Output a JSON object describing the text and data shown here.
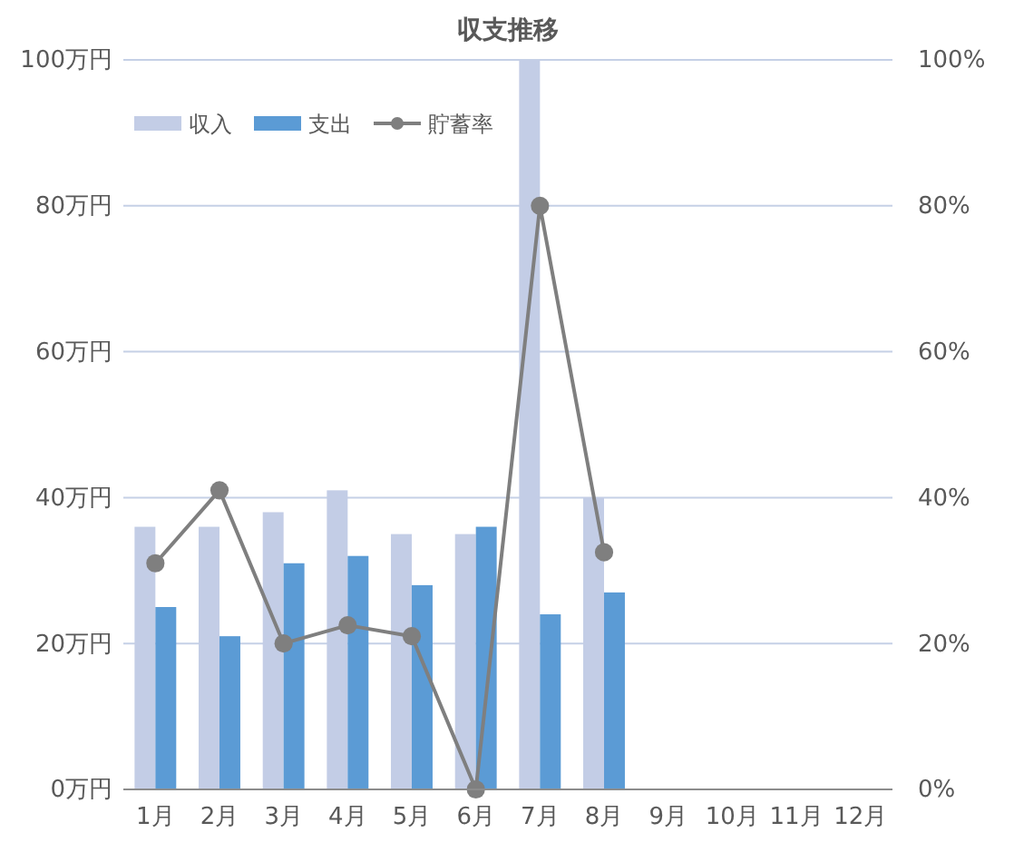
{
  "chart_data": {
    "type": "bar",
    "title": "収支推移",
    "categories": [
      "1月",
      "2月",
      "3月",
      "4月",
      "5月",
      "6月",
      "7月",
      "8月",
      "9月",
      "10月",
      "11月",
      "12月"
    ],
    "series": [
      {
        "name": "収入",
        "color": "#c3cde6",
        "values": [
          36,
          36,
          38,
          41,
          35,
          35,
          100,
          40,
          null,
          null,
          null,
          null
        ]
      },
      {
        "name": "支出",
        "color": "#5b9bd5",
        "values": [
          25,
          21,
          31,
          32,
          28,
          36,
          24,
          27,
          null,
          null,
          null,
          null
        ]
      },
      {
        "name": "貯蓄率",
        "type": "line",
        "axis": "y2",
        "color": "#7f7f7f",
        "marker": "circle",
        "values": [
          31,
          41,
          20,
          22.5,
          21,
          0,
          80,
          32.5,
          null,
          null,
          null,
          null
        ]
      }
    ],
    "ylim": [
      0,
      100
    ],
    "yticks": [
      {
        "value": 0,
        "label": "0万円"
      },
      {
        "value": 20,
        "label": "20万円"
      },
      {
        "value": 40,
        "label": "40万円"
      },
      {
        "value": 60,
        "label": "60万円"
      },
      {
        "value": 80,
        "label": "80万円"
      },
      {
        "value": 100,
        "label": "100万円"
      }
    ],
    "y2lim": [
      0,
      100
    ],
    "y2ticks": [
      {
        "value": 0,
        "label": "0%"
      },
      {
        "value": 20,
        "label": "20%"
      },
      {
        "value": 40,
        "label": "40%"
      },
      {
        "value": 60,
        "label": "60%"
      },
      {
        "value": 80,
        "label": "80%"
      },
      {
        "value": 100,
        "label": "100%"
      }
    ],
    "grid": "y",
    "legend": "top left"
  }
}
